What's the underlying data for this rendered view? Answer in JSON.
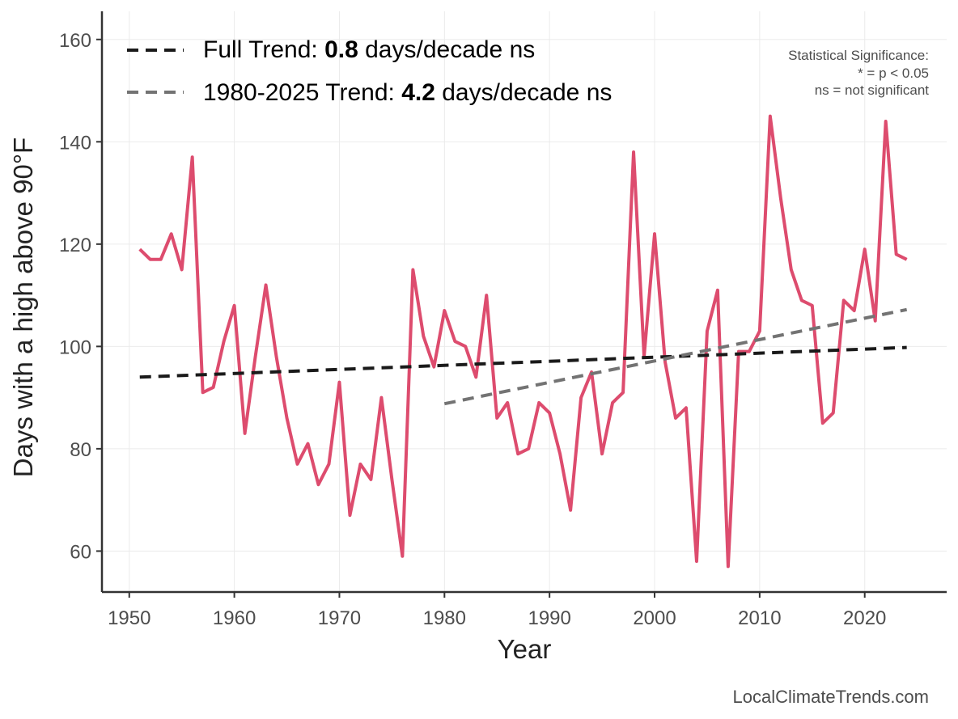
{
  "chart_data": {
    "type": "line",
    "xlabel": "Year",
    "ylabel": "Days with a high above 90°F",
    "xlim": [
      1947.4,
      2027.8
    ],
    "ylim": [
      52,
      165.5
    ],
    "x_ticks": [
      1950,
      1960,
      1970,
      1980,
      1990,
      2000,
      2010,
      2020
    ],
    "y_ticks": [
      60,
      80,
      100,
      120,
      140,
      160
    ],
    "grid": true,
    "series": [
      {
        "name": "Days with a high above 90°F",
        "color": "#dd4c6e",
        "x": [
          1951,
          1952,
          1953,
          1954,
          1955,
          1956,
          1957,
          1958,
          1959,
          1960,
          1961,
          1962,
          1963,
          1964,
          1965,
          1966,
          1967,
          1968,
          1969,
          1970,
          1971,
          1972,
          1973,
          1974,
          1975,
          1976,
          1977,
          1978,
          1979,
          1980,
          1981,
          1982,
          1983,
          1984,
          1985,
          1986,
          1987,
          1988,
          1989,
          1990,
          1991,
          1992,
          1993,
          1994,
          1995,
          1996,
          1997,
          1998,
          1999,
          2000,
          2001,
          2002,
          2003,
          2004,
          2005,
          2006,
          2007,
          2008,
          2009,
          2010,
          2011,
          2012,
          2013,
          2014,
          2015,
          2016,
          2017,
          2018,
          2019,
          2020,
          2021,
          2022,
          2023,
          2024
        ],
        "values": [
          119,
          117,
          117,
          122,
          115,
          137,
          91,
          92,
          101,
          108,
          83,
          98,
          112,
          98,
          86,
          77,
          81,
          73,
          77,
          93,
          67,
          77,
          74,
          90,
          74,
          59,
          115,
          102,
          96,
          107,
          101,
          100,
          94,
          110,
          86,
          89,
          79,
          80,
          89,
          87,
          79,
          68,
          90,
          95,
          79,
          89,
          91,
          138,
          98,
          122,
          97,
          86,
          88,
          58,
          103,
          111,
          57,
          99,
          99,
          103,
          145,
          129,
          115,
          109,
          108,
          85,
          87,
          109,
          107,
          119,
          105,
          144,
          118,
          117
        ]
      },
      {
        "name": "Full Trend",
        "style": "dashed",
        "color": "#1a1a1a",
        "x": [
          1951,
          2024
        ],
        "values": [
          94.0,
          99.8
        ]
      },
      {
        "name": "1980-2025 Trend",
        "style": "dashed",
        "color": "#737373",
        "x": [
          1980,
          2024
        ],
        "values": [
          88.8,
          107.2
        ]
      }
    ],
    "legend": {
      "position": "top-left",
      "entries": [
        {
          "prefix": "Full Trend: ",
          "value": "0.8",
          "suffix": " days/decade ns"
        },
        {
          "prefix": "1980-2025 Trend: ",
          "value": "4.2",
          "suffix": " days/decade ns"
        }
      ]
    },
    "significance_note": {
      "line1": "Statistical Significance:",
      "line2": "* = p < 0.05",
      "line3": "ns = not significant"
    },
    "credit": "LocalClimateTrends.com"
  }
}
